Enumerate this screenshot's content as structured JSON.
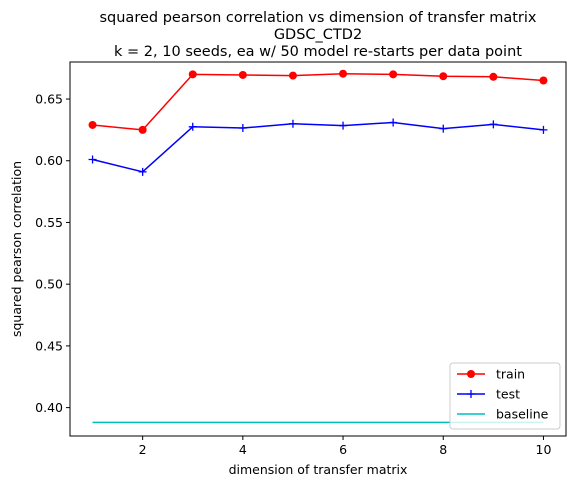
{
  "chart_data": {
    "type": "line",
    "title_lines": [
      "squared pearson correlation vs dimension of transfer matrix",
      "GDSC_CTD2",
      "k = 2, 10 seeds, ea w/ 50 model re-starts per data point"
    ],
    "xlabel": "dimension of transfer matrix",
    "ylabel": "squared pearson correlation",
    "x": [
      1,
      2,
      3,
      4,
      5,
      6,
      7,
      8,
      9,
      10
    ],
    "xlim": [
      0.55,
      10.45
    ],
    "ylim": [
      0.377,
      0.68
    ],
    "xticks": [
      2,
      4,
      6,
      8,
      10
    ],
    "yticks": [
      0.4,
      0.45,
      0.5,
      0.55,
      0.6,
      0.65
    ],
    "xtick_labels": [
      "2",
      "4",
      "6",
      "8",
      "10"
    ],
    "ytick_labels": [
      "0.40",
      "0.45",
      "0.50",
      "0.55",
      "0.60",
      "0.65"
    ],
    "grid": false,
    "legend_position": "lower-right",
    "series": [
      {
        "name": "train",
        "color": "#ff0000",
        "marker": "circle",
        "values": [
          0.629,
          0.625,
          0.67,
          0.6695,
          0.669,
          0.6705,
          0.67,
          0.6685,
          0.668,
          0.665
        ]
      },
      {
        "name": "test",
        "color": "#0000ff",
        "marker": "plus",
        "values": [
          0.601,
          0.591,
          0.6275,
          0.6265,
          0.63,
          0.6285,
          0.631,
          0.626,
          0.6295,
          0.625
        ]
      },
      {
        "name": "baseline",
        "color": "#00bfbf",
        "marker": "none",
        "values": [
          0.388,
          0.388,
          0.388,
          0.388,
          0.388,
          0.388,
          0.388,
          0.388,
          0.388,
          0.388
        ]
      }
    ]
  }
}
